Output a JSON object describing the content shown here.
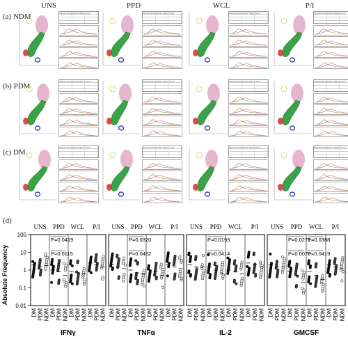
{
  "rows": [
    {
      "label": "(a) NDM"
    },
    {
      "label": "(b) PDM"
    },
    {
      "label": "(c) DM"
    }
  ],
  "columns": [
    "UNS",
    "PPD",
    "WCL",
    "P/I"
  ],
  "legend_table": {
    "header": [
      "Sample Name",
      "Subset Name",
      "Count"
    ]
  },
  "panel_d": {
    "label": "(d)",
    "ylabel": "Absolute Frequency",
    "yticks": [
      "100",
      "10",
      "1",
      "0.1",
      "0.01"
    ],
    "group_headers": [
      "UNS",
      "PPD",
      "WCL",
      "P/I"
    ],
    "categories": [
      "DM",
      "PDM",
      "NDM"
    ],
    "cytokines": [
      "IFNγ",
      "TNFα",
      "IL-2",
      "GMCSF"
    ],
    "pvalues": [
      [
        "P=0.0419",
        "P=0.0115"
      ],
      [
        "P=0.0320",
        "P=0.0452"
      ],
      [
        "P=0.0193",
        "P=0.0414"
      ],
      [
        "P=0.0271",
        "P=0.0070",
        "P=0.0388",
        "P=0.0419"
      ]
    ]
  },
  "chart_data": {
    "type": "scatter",
    "title": "",
    "ylabel": "Absolute Frequency",
    "yscale": "log",
    "ylim": [
      0.01,
      100
    ],
    "panels": [
      "IFNγ",
      "TNFα",
      "IL-2",
      "GMCSF"
    ],
    "groups": [
      "UNS",
      "PPD",
      "WCL",
      "P/I"
    ],
    "categories": [
      "DM",
      "PDM",
      "NDM"
    ],
    "approx_medians": {
      "IFNγ": [
        [
          2,
          1.5,
          1.8
        ],
        [
          1,
          0.8,
          0.5
        ],
        [
          0.8,
          0.7,
          0.6
        ],
        [
          2.5,
          2,
          1.5
        ]
      ],
      "TNFα": [
        [
          2,
          1.5,
          1.2
        ],
        [
          1,
          0.7,
          0.6
        ],
        [
          1,
          0.8,
          0.5
        ],
        [
          2,
          1.5,
          1.2
        ]
      ],
      "IL-2": [
        [
          2,
          1.5,
          1.5
        ],
        [
          1.5,
          1,
          0.6
        ],
        [
          1,
          0.8,
          0.6
        ],
        [
          2.5,
          2,
          1.5
        ]
      ],
      "GMCSF": [
        [
          2,
          1.5,
          1.5
        ],
        [
          0.8,
          0.5,
          0.2
        ],
        [
          0.8,
          0.5,
          0.3
        ],
        [
          2,
          1.5,
          1.2
        ]
      ]
    }
  },
  "colors": {
    "green": "#3aa34a",
    "pink": "#d98fb0",
    "red": "#d32f2f",
    "blue": "#2b3fa8",
    "yellow": "#d6cf5a"
  }
}
